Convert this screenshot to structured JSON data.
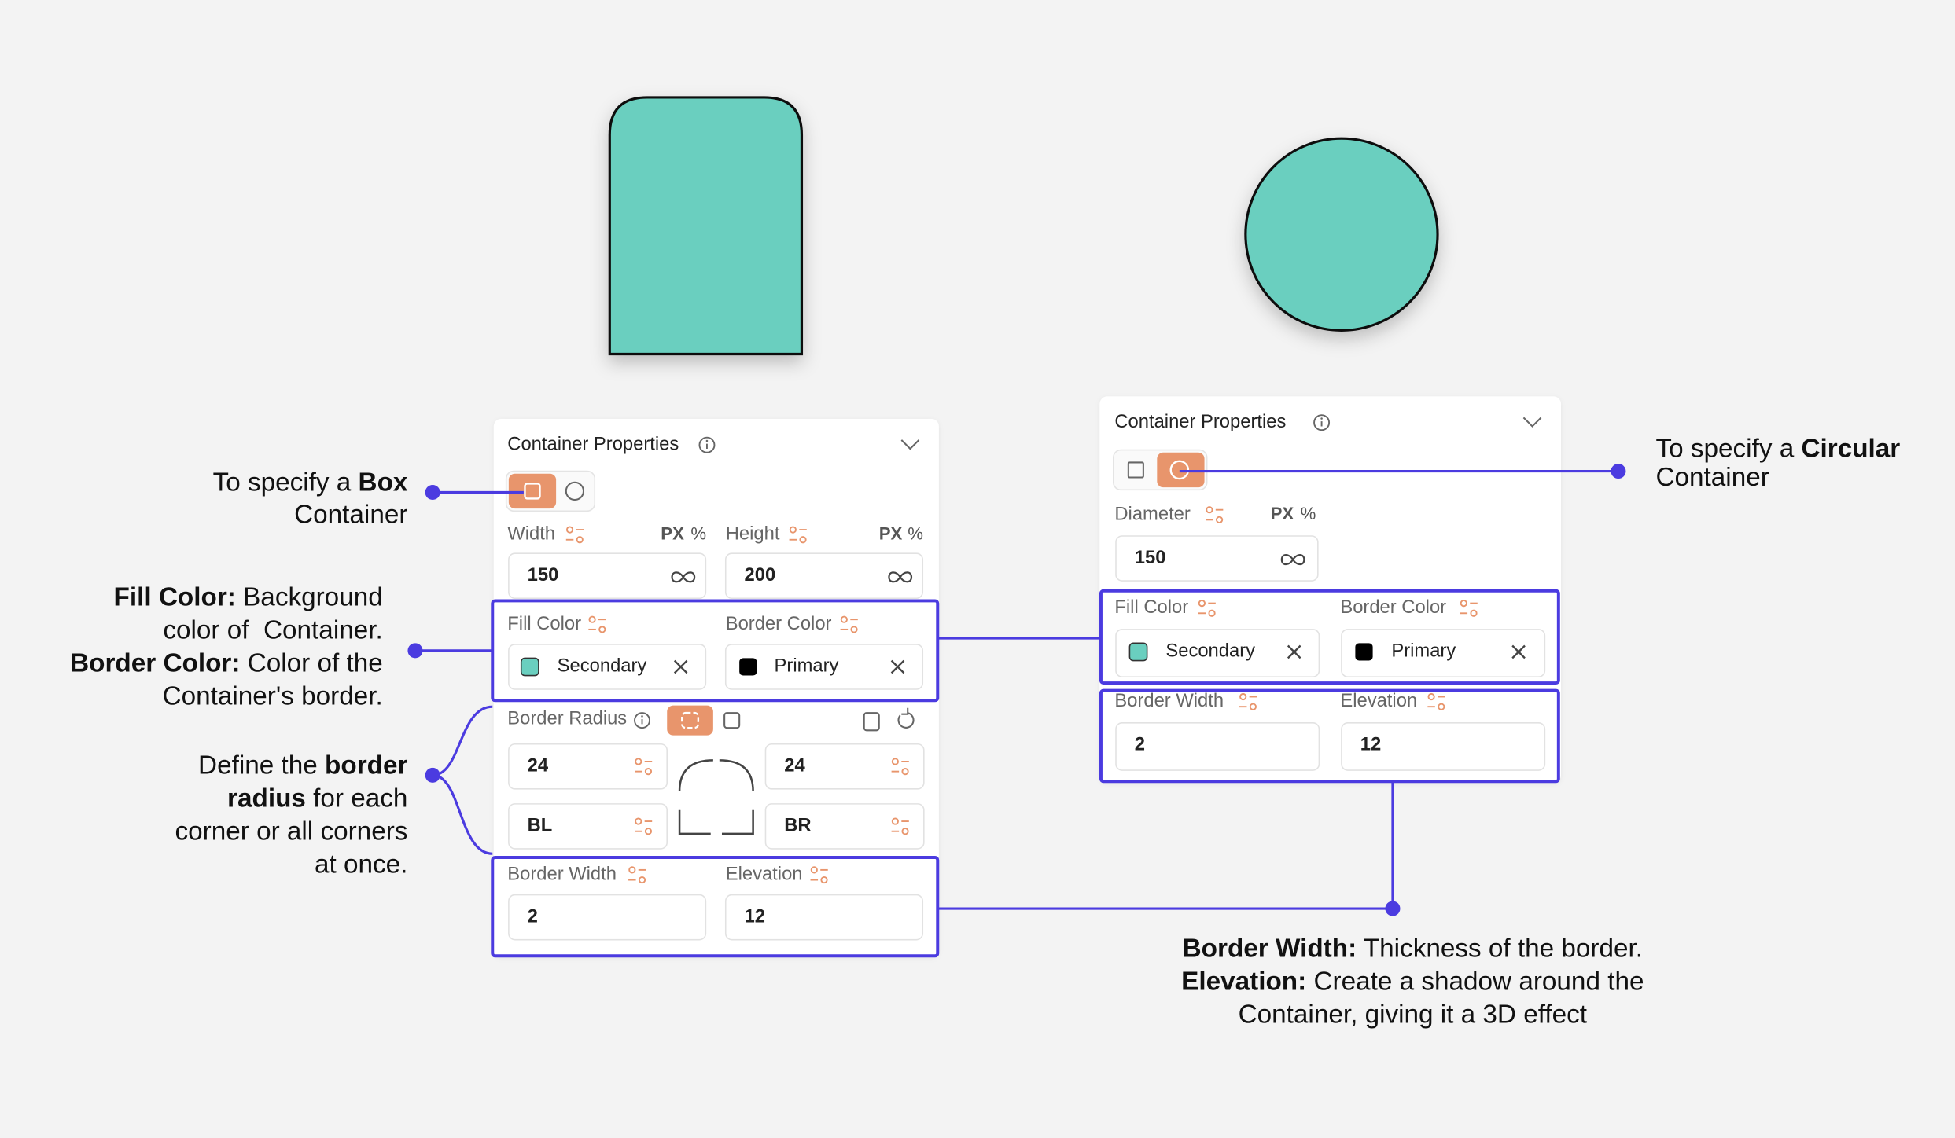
{
  "left_panel": {
    "title": "Container Properties",
    "width": {
      "label": "Width",
      "units": [
        "PX",
        "%"
      ],
      "value": "150"
    },
    "height": {
      "label": "Height",
      "units": [
        "PX",
        "%"
      ],
      "value": "200"
    },
    "fill_color": {
      "label": "Fill Color",
      "value": "Secondary"
    },
    "border_color": {
      "label": "Border Color",
      "value": "Primary"
    },
    "border_radius": {
      "label": "Border Radius",
      "top_left": "24",
      "top_right": "24",
      "bottom_left": "BL",
      "bottom_right": "BR"
    },
    "border_width": {
      "label": "Border Width",
      "value": "2"
    },
    "elevation": {
      "label": "Elevation",
      "value": "12"
    }
  },
  "right_panel": {
    "title": "Container Properties",
    "diameter": {
      "label": "Diameter",
      "units": [
        "PX",
        "%"
      ],
      "value": "150"
    },
    "fill_color": {
      "label": "Fill Color",
      "value": "Secondary"
    },
    "border_color": {
      "label": "Border Color",
      "value": "Primary"
    },
    "border_width": {
      "label": "Border Width",
      "value": "2"
    },
    "elevation": {
      "label": "Elevation",
      "value": "12"
    }
  },
  "annotations": [
    {
      "lines": [
        [
          {
            "text": "To specify a "
          },
          {
            "text": "Box",
            "bold": true
          }
        ],
        [
          {
            "text": "Container"
          }
        ]
      ]
    },
    {
      "lines": [
        [
          {
            "text": "Fill Color:",
            "bold": true
          },
          {
            "text": " Background"
          }
        ],
        [
          {
            "text": "color of  Container."
          }
        ],
        [
          {
            "text": "Border Color:",
            "bold": true
          },
          {
            "text": " Color of the"
          }
        ],
        [
          {
            "text": "Container's border."
          }
        ]
      ]
    },
    {
      "lines": [
        [
          {
            "text": "Define the "
          },
          {
            "text": "border",
            "bold": true
          }
        ],
        [
          {
            "text": "radius",
            "bold": true
          },
          {
            "text": " for each"
          }
        ],
        [
          {
            "text": "corner or all corners"
          }
        ],
        [
          {
            "text": "at once."
          }
        ]
      ]
    },
    {
      "lines": [
        [
          {
            "text": "To specify a "
          },
          {
            "text": "Circular",
            "bold": true
          }
        ],
        [
          {
            "text": "Container"
          }
        ]
      ]
    },
    {
      "lines": [
        [
          {
            "text": "Border Width:",
            "bold": true
          },
          {
            "text": " Thickness of the border."
          }
        ],
        [
          {
            "text": "Elevation:",
            "bold": true
          },
          {
            "text": " Create a shadow around the"
          }
        ],
        [
          {
            "text": "Container, giving it a 3D effect"
          }
        ]
      ]
    }
  ]
}
